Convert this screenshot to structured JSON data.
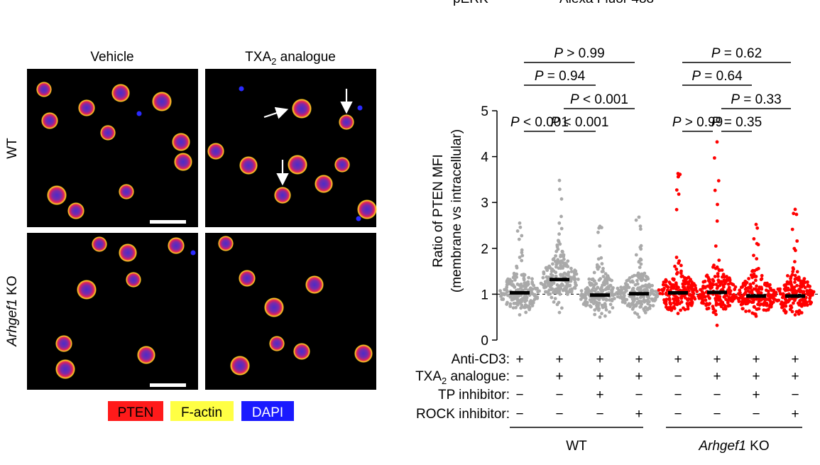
{
  "top_cutoff_text": [
    "pERK",
    "Alexa Fluor 488"
  ],
  "microscopy": {
    "columns": [
      "Vehicle",
      "TXA",
      "2",
      " analogue"
    ],
    "rows": [
      {
        "label": "WT",
        "italic": false
      },
      {
        "label_italic": "Arhgef1",
        "label_rest": " KO"
      }
    ],
    "legend": [
      {
        "label": "PTEN",
        "color": "#ff1a1a",
        "text_color": "#000000"
      },
      {
        "label": "F-actin",
        "color": "#ffff44",
        "text_color": "#000000"
      },
      {
        "label": "DAPI",
        "color": "#1a1aff",
        "text_color": "#ffffff"
      }
    ],
    "cell_colors": {
      "pten": "#e0205a",
      "actin": "#ffd21f",
      "dapi": "#4a2cc8",
      "background": "#000000"
    }
  },
  "chart_data": {
    "type": "scatter",
    "ylabel_lines": [
      "Ratio of PTEN MFI",
      "(membrane vs intracellular)"
    ],
    "ylim": [
      0,
      5
    ],
    "yticks": [
      "0",
      "1",
      "2",
      "3",
      "4",
      "5"
    ],
    "reference_line": 1,
    "groups": [
      {
        "genotype": "WT",
        "color": "#a9a9a9",
        "mean": 1.03,
        "max": 2.55,
        "min": 0.55
      },
      {
        "genotype": "WT",
        "color": "#a9a9a9",
        "mean": 1.32,
        "max": 3.48,
        "min": 0.6
      },
      {
        "genotype": "WT",
        "color": "#a9a9a9",
        "mean": 0.98,
        "max": 2.48,
        "min": 0.5
      },
      {
        "genotype": "WT",
        "color": "#a9a9a9",
        "mean": 1.01,
        "max": 2.68,
        "min": 0.5
      },
      {
        "genotype": "Arhgef1 KO",
        "color": "#ff0000",
        "mean": 1.03,
        "max": 3.63,
        "min": 0.58
      },
      {
        "genotype": "Arhgef1 KO",
        "color": "#ff0000",
        "mean": 1.04,
        "max": 4.32,
        "min": 0.32
      },
      {
        "genotype": "Arhgef1 KO",
        "color": "#ff0000",
        "mean": 0.96,
        "max": 2.52,
        "min": 0.52
      },
      {
        "genotype": "Arhgef1 KO",
        "color": "#ff0000",
        "mean": 0.96,
        "max": 2.85,
        "min": 0.55
      }
    ],
    "condition_rows": [
      {
        "label": "Anti-CD3:",
        "values": [
          "+",
          "+",
          "+",
          "+",
          "+",
          "+",
          "+",
          "+"
        ]
      },
      {
        "label_pre": "TXA",
        "label_sub": "2",
        "label_post": " analogue:",
        "values": [
          "−",
          "+",
          "+",
          "+",
          "−",
          "+",
          "+",
          "+"
        ]
      },
      {
        "label": "TP inhibitor:",
        "values": [
          "−",
          "−",
          "+",
          "−",
          "−",
          "−",
          "+",
          "−"
        ]
      },
      {
        "label": "ROCK inhibitor:",
        "values": [
          "−",
          "−",
          "−",
          "+",
          "−",
          "−",
          "−",
          "+"
        ]
      }
    ],
    "genotype_labels": [
      {
        "text": "WT"
      },
      {
        "italic": "Arhgef1",
        "rest": " KO"
      }
    ],
    "comparisons": [
      {
        "from": 0,
        "to": 3,
        "text": "P > 0.99",
        "level": 4
      },
      {
        "from": 0,
        "to": 2,
        "text": "P = 0.94",
        "level": 3
      },
      {
        "from": 1,
        "to": 3,
        "text": "P < 0.001",
        "level": 2
      },
      {
        "from": 0,
        "to": 1,
        "text": "P < 0.001",
        "level": 1
      },
      {
        "from": 1,
        "to": 2,
        "text": "P < 0.001",
        "level": 1
      },
      {
        "from": 4,
        "to": 7,
        "text": "P = 0.62",
        "level": 4
      },
      {
        "from": 4,
        "to": 6,
        "text": "P = 0.64",
        "level": 3
      },
      {
        "from": 5,
        "to": 7,
        "text": "P = 0.33",
        "level": 2
      },
      {
        "from": 4,
        "to": 5,
        "text": "P > 0.99",
        "level": 1
      },
      {
        "from": 5,
        "to": 6,
        "text": "P = 0.35",
        "level": 1
      }
    ]
  }
}
